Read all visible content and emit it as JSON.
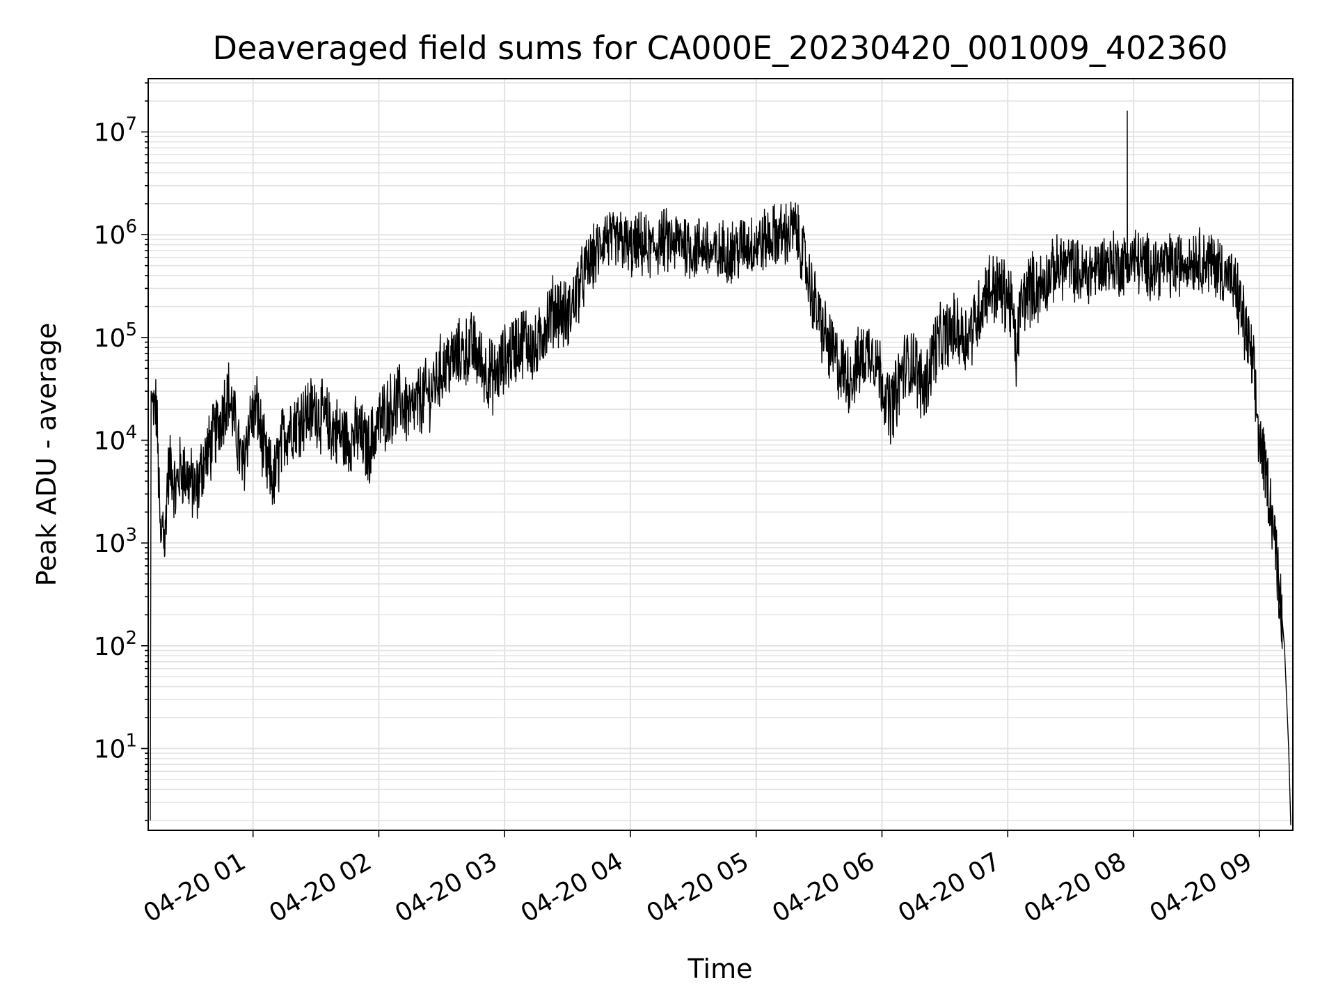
{
  "chart_data": {
    "type": "line",
    "title": "Deaveraged field sums for CA000E_20230420_001009_402360",
    "xlabel": "Time",
    "ylabel": "Peak ADU - average",
    "yscale": "log",
    "ylim": [
      1.6,
      33000000.0
    ],
    "xlim": [
      "2023-04-20 00:10",
      "2023-04-20 09:16"
    ],
    "grid": true,
    "x_tick_labels": [
      "04-20 01",
      "04-20 02",
      "04-20 03",
      "04-20 04",
      "04-20 05",
      "04-20 06",
      "04-20 07",
      "04-20 08",
      "04-20 09"
    ],
    "x_tick_times": [
      "2023-04-20 01:00",
      "2023-04-20 02:00",
      "2023-04-20 03:00",
      "2023-04-20 04:00",
      "2023-04-20 05:00",
      "2023-04-20 06:00",
      "2023-04-20 07:00",
      "2023-04-20 08:00",
      "2023-04-20 09:00"
    ],
    "y_ticks": [
      {
        "base": "10",
        "exp": "1",
        "value": 10
      },
      {
        "base": "10",
        "exp": "2",
        "value": 100
      },
      {
        "base": "10",
        "exp": "3",
        "value": 1000
      },
      {
        "base": "10",
        "exp": "4",
        "value": 10000
      },
      {
        "base": "10",
        "exp": "5",
        "value": 100000
      },
      {
        "base": "10",
        "exp": "6",
        "value": 1000000
      },
      {
        "base": "10",
        "exp": "7",
        "value": 10000000
      }
    ],
    "line_color": "#000000",
    "series": [
      {
        "x": [
          "2023-04-20 00:12",
          "2023-04-20 00:14",
          "2023-04-20 00:16",
          "2023-04-20 00:17",
          "2023-04-20 00:18",
          "2023-04-20 00:19",
          "2023-04-20 00:21",
          "2023-04-20 00:23",
          "2023-04-20 00:25",
          "2023-04-20 00:27",
          "2023-04-20 00:30",
          "2023-04-20 00:33",
          "2023-04-20 00:36",
          "2023-04-20 00:40",
          "2023-04-20 00:44",
          "2023-04-20 00:48",
          "2023-04-20 00:52",
          "2023-04-20 00:55",
          "2023-04-20 00:58",
          "2023-04-20 01:02",
          "2023-04-20 01:06",
          "2023-04-20 01:10",
          "2023-04-20 01:15",
          "2023-04-20 01:20",
          "2023-04-20 01:25",
          "2023-04-20 01:30",
          "2023-04-20 01:35",
          "2023-04-20 01:40",
          "2023-04-20 01:45",
          "2023-04-20 01:50",
          "2023-04-20 01:55",
          "2023-04-20 02:00",
          "2023-04-20 02:05",
          "2023-04-20 02:10",
          "2023-04-20 02:15",
          "2023-04-20 02:20",
          "2023-04-20 02:25",
          "2023-04-20 02:30",
          "2023-04-20 02:35",
          "2023-04-20 02:40",
          "2023-04-20 02:45",
          "2023-04-20 02:50",
          "2023-04-20 02:55",
          "2023-04-20 03:00",
          "2023-04-20 03:05",
          "2023-04-20 03:10",
          "2023-04-20 03:15",
          "2023-04-20 03:20",
          "2023-04-20 03:25",
          "2023-04-20 03:30",
          "2023-04-20 03:35",
          "2023-04-20 03:40",
          "2023-04-20 03:45",
          "2023-04-20 03:48",
          "2023-04-20 03:52",
          "2023-04-20 03:56",
          "2023-04-20 04:00",
          "2023-04-20 04:05",
          "2023-04-20 04:10",
          "2023-04-20 04:15",
          "2023-04-20 04:20",
          "2023-04-20 04:25",
          "2023-04-20 04:30",
          "2023-04-20 04:35",
          "2023-04-20 04:40",
          "2023-04-20 04:45",
          "2023-04-20 04:50",
          "2023-04-20 04:55",
          "2023-04-20 05:00",
          "2023-04-20 05:05",
          "2023-04-20 05:10",
          "2023-04-20 05:15",
          "2023-04-20 05:18",
          "2023-04-20 05:22",
          "2023-04-20 05:26",
          "2023-04-20 05:30",
          "2023-04-20 05:35",
          "2023-04-20 05:40",
          "2023-04-20 05:45",
          "2023-04-20 05:50",
          "2023-04-20 05:55",
          "2023-04-20 06:00",
          "2023-04-20 06:03",
          "2023-04-20 06:06",
          "2023-04-20 06:10",
          "2023-04-20 06:15",
          "2023-04-20 06:20",
          "2023-04-20 06:25",
          "2023-04-20 06:30",
          "2023-04-20 06:35",
          "2023-04-20 06:40",
          "2023-04-20 06:45",
          "2023-04-20 06:50",
          "2023-04-20 06:55",
          "2023-04-20 07:00",
          "2023-04-20 07:02",
          "2023-04-20 07:04",
          "2023-04-20 07:06",
          "2023-04-20 07:10",
          "2023-04-20 07:15",
          "2023-04-20 07:20",
          "2023-04-20 07:25",
          "2023-04-20 07:30",
          "2023-04-20 07:35",
          "2023-04-20 07:40",
          "2023-04-20 07:45",
          "2023-04-20 07:50",
          "2023-04-20 07:55",
          "2023-04-20 08:00",
          "2023-04-20 08:05",
          "2023-04-20 08:10",
          "2023-04-20 08:15",
          "2023-04-20 08:20",
          "2023-04-20 08:25",
          "2023-04-20 08:30",
          "2023-04-20 08:35",
          "2023-04-20 08:40",
          "2023-04-20 08:45",
          "2023-04-20 08:48",
          "2023-04-20 08:51",
          "2023-04-20 08:54",
          "2023-04-20 08:57",
          "2023-04-20 09:00",
          "2023-04-20 09:03",
          "2023-04-20 09:06",
          "2023-04-20 09:09",
          "2023-04-20 09:12",
          "2023-04-20 09:14",
          "2023-04-20 09:15"
        ],
        "y": [
          20000,
          20000,
          800,
          2000,
          900,
          4000,
          6000,
          3000,
          5000,
          5000,
          4000,
          3000,
          6000,
          9000,
          15000,
          30000,
          12000,
          5000,
          15000,
          20000,
          6000,
          4000,
          12000,
          15000,
          18000,
          20000,
          15000,
          12000,
          10000,
          12000,
          8000,
          15000,
          20000,
          25000,
          18000,
          25000,
          30000,
          50000,
          60000,
          70000,
          80000,
          50000,
          40000,
          60000,
          80000,
          100000,
          70000,
          150000,
          200000,
          150000,
          300000,
          500000,
          700000,
          1000000,
          800000,
          900000,
          700000,
          800000,
          700000,
          900000,
          800000,
          900000,
          700000,
          800000,
          600000,
          700000,
          700000,
          800000,
          800000,
          900000,
          1000000,
          1000000,
          1200000,
          700000,
          300000,
          150000,
          80000,
          50000,
          40000,
          60000,
          80000,
          40000,
          20000,
          25000,
          50000,
          60000,
          30000,
          80000,
          100000,
          120000,
          100000,
          150000,
          300000,
          300000,
          250000,
          200000,
          60000,
          200000,
          300000,
          300000,
          400000,
          500000,
          500000,
          400000,
          450000,
          500000,
          550000,
          500000,
          600000,
          500000,
          500000,
          500000,
          500000,
          550000,
          600000,
          550000,
          500000,
          400000,
          300000,
          200000,
          100000,
          50000,
          10000,
          5000,
          2000,
          500,
          100,
          10,
          1.8
        ]
      }
    ],
    "annotations": [
      {
        "x": "2023-04-20 07:57",
        "y": 16000000,
        "note": "spike"
      }
    ]
  }
}
